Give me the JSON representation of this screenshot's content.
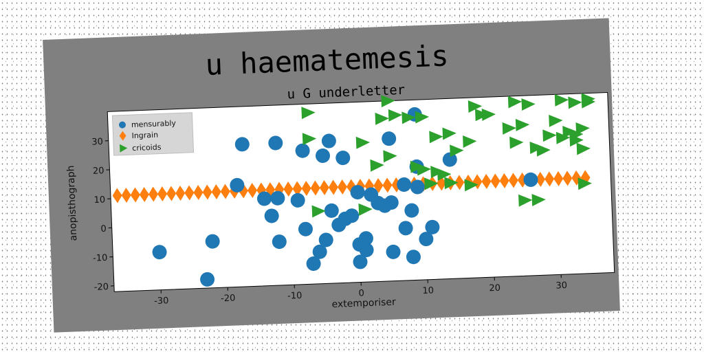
{
  "chart_data": {
    "type": "scatter",
    "title": "u haematemesis",
    "subtitle": "u G underletter",
    "xlabel": "extemporiser",
    "ylabel": "anopisthograph",
    "xlim": [
      -37,
      38
    ],
    "ylim": [
      -22,
      40
    ],
    "xticks": [
      -30,
      -20,
      -10,
      0,
      10,
      20,
      30
    ],
    "yticks": [
      -20,
      -10,
      0,
      10,
      20,
      30
    ],
    "grid": false,
    "legend_position": "top-left",
    "series": [
      {
        "name": "mensurably",
        "marker": "circle",
        "color": "#1f77b4",
        "points": [
          [
            -30,
            -9
          ],
          [
            -23,
            -19
          ],
          [
            -22,
            -6
          ],
          [
            -18,
            13
          ],
          [
            -17,
            27
          ],
          [
            -14,
            8
          ],
          [
            -13,
            2
          ],
          [
            -12,
            8
          ],
          [
            -12,
            27
          ],
          [
            -12,
            -7
          ],
          [
            -9,
            7
          ],
          [
            -8,
            24
          ],
          [
            -8,
            -3
          ],
          [
            -7,
            -15
          ],
          [
            -6,
            -11
          ],
          [
            -5,
            -7
          ],
          [
            -5,
            22
          ],
          [
            -4,
            27
          ],
          [
            -4,
            3
          ],
          [
            -3,
            -2
          ],
          [
            -2,
            21
          ],
          [
            -2,
            0
          ],
          [
            -1,
            1
          ],
          [
            0,
            9
          ],
          [
            0,
            -9
          ],
          [
            0,
            -15
          ],
          [
            1,
            -7
          ],
          [
            1,
            -11
          ],
          [
            2,
            8
          ],
          [
            3,
            5
          ],
          [
            4,
            4
          ],
          [
            5,
            5
          ],
          [
            5,
            -12
          ],
          [
            5,
            27
          ],
          [
            7,
            -4
          ],
          [
            7,
            11
          ],
          [
            8,
            -14
          ],
          [
            8,
            2
          ],
          [
            9,
            35
          ],
          [
            9,
            17
          ],
          [
            9,
            10
          ],
          [
            10,
            -8
          ],
          [
            11,
            -4
          ],
          [
            14,
            19
          ],
          [
            26,
            11
          ]
        ]
      },
      {
        "name": "Ingrain",
        "marker": "diamond",
        "color": "#ff7f0e",
        "x_start": -36,
        "x_end": 35,
        "x_step": 1.35,
        "y": 11
      },
      {
        "name": "cricoids",
        "marker": "triangle-right",
        "color": "#2ca02c",
        "points": [
          [
            -7,
            37
          ],
          [
            -7,
            28
          ],
          [
            -6,
            3
          ],
          [
            1,
            3
          ],
          [
            1,
            26
          ],
          [
            3,
            18
          ],
          [
            4,
            34
          ],
          [
            5,
            21
          ],
          [
            5,
            40
          ],
          [
            6,
            35
          ],
          [
            8,
            34
          ],
          [
            9,
            17
          ],
          [
            10,
            16
          ],
          [
            10,
            34
          ],
          [
            11,
            11
          ],
          [
            12,
            27
          ],
          [
            12,
            15
          ],
          [
            13,
            14
          ],
          [
            14,
            11
          ],
          [
            14,
            28
          ],
          [
            15,
            22
          ],
          [
            17,
            10
          ],
          [
            17,
            25
          ],
          [
            18,
            37
          ],
          [
            19,
            34
          ],
          [
            20,
            34
          ],
          [
            23,
            29
          ],
          [
            24,
            38
          ],
          [
            24,
            24
          ],
          [
            25,
            4
          ],
          [
            25,
            30
          ],
          [
            26,
            37
          ],
          [
            27,
            22
          ],
          [
            27,
            4
          ],
          [
            28,
            21
          ],
          [
            29,
            26
          ],
          [
            30,
            31
          ],
          [
            31,
            25
          ],
          [
            31,
            38
          ],
          [
            32,
            27
          ],
          [
            33,
            37
          ],
          [
            33,
            26
          ],
          [
            33,
            24
          ],
          [
            34,
            9
          ],
          [
            34,
            21
          ],
          [
            34,
            28
          ],
          [
            35,
            38
          ],
          [
            35,
            37
          ]
        ]
      }
    ]
  }
}
